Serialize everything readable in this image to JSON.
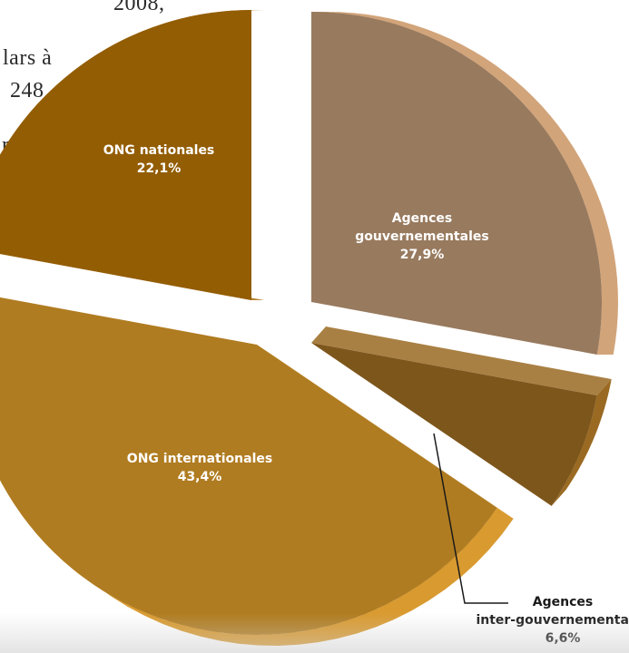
{
  "background_text": [
    {
      "text": "2008,"
    },
    {
      "text": "lars à"
    },
    {
      "text": "248"
    },
    {
      "text": "re"
    }
  ],
  "chart_data": {
    "type": "pie",
    "categories": [
      "Agences gouvernementales",
      "Agences inter-gouvernementales",
      "ONG internationales",
      "ONG nationales"
    ],
    "values": [
      27.9,
      6.6,
      43.4,
      22.1
    ],
    "labels": [
      {
        "lines": [
          "Agences",
          "gouvernementales",
          "27,9%"
        ]
      },
      {
        "lines": [
          "Agences",
          "inter-gouvernementales",
          "6,6%"
        ]
      },
      {
        "lines": [
          "ONG internationales",
          "43,4%"
        ]
      },
      {
        "lines": [
          "ONG nationales",
          "22,1%"
        ]
      }
    ],
    "colors": {
      "Agences gouvernementales": "#987a5e",
      "Agences inter-gouvernementales": "#7d561c",
      "ONG internationales": "#b07c21",
      "ONG nationales": "#935d04"
    },
    "side_colors": {
      "Agences gouvernementales": "#d2a47a",
      "Agences inter-gouvernementales": "#9a6a22",
      "ONG internationales": "#d99a30",
      "ONG nationales": "#a86e0c"
    },
    "style": "3d-exploded",
    "legend": "none"
  }
}
